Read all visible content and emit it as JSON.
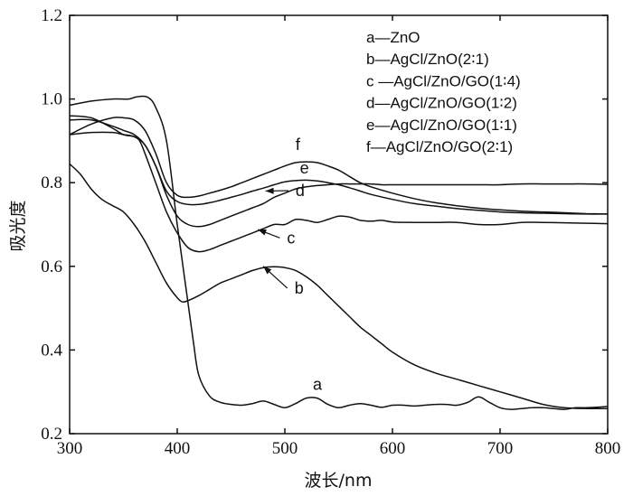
{
  "chart_data": {
    "type": "line",
    "xlabel": "波长/nm",
    "ylabel": "吸光度",
    "xlim": [
      300,
      800
    ],
    "ylim": [
      0.2,
      1.2
    ],
    "xticks": [
      300,
      400,
      500,
      600,
      700,
      800
    ],
    "yticks": [
      0.2,
      0.4,
      0.6,
      0.8,
      1.0,
      1.2
    ],
    "ytick_labels": [
      "0.2",
      "0.4",
      "0.6",
      "0.8",
      "1.0",
      "1.2"
    ],
    "grid": false,
    "legend_position": "top-right",
    "legend": [
      "a—ZnO",
      "b—AgCl/ZnO(2∶1)",
      "c —AgCl/ZnO/GO(1∶4)",
      "d—AgCl/ZnO/GO(1∶2)",
      "e—AgCl/ZnO/GO(1∶1)",
      "f—AgCl/ZnO/GO(2∶1)"
    ],
    "series": [
      {
        "label": "a",
        "x": [
          300,
          320,
          340,
          355,
          362,
          372,
          380,
          390,
          400,
          408,
          415,
          420,
          430,
          440,
          450,
          460,
          470,
          480,
          490,
          500,
          510,
          520,
          530,
          540,
          550,
          560,
          570,
          580,
          590,
          600,
          610,
          620,
          630,
          640,
          650,
          660,
          670,
          680,
          690,
          700,
          710,
          720,
          730,
          740,
          750,
          760,
          770,
          780,
          790,
          800
        ],
        "y": [
          0.985,
          0.995,
          1.0,
          1.0,
          1.005,
          1.005,
          0.98,
          0.9,
          0.7,
          0.55,
          0.42,
          0.34,
          0.29,
          0.275,
          0.27,
          0.268,
          0.272,
          0.278,
          0.27,
          0.262,
          0.272,
          0.285,
          0.285,
          0.27,
          0.262,
          0.268,
          0.272,
          0.268,
          0.263,
          0.268,
          0.268,
          0.266,
          0.268,
          0.27,
          0.27,
          0.268,
          0.275,
          0.288,
          0.275,
          0.262,
          0.258,
          0.26,
          0.262,
          0.262,
          0.26,
          0.258,
          0.262,
          0.262,
          0.263,
          0.265
        ]
      },
      {
        "label": "b",
        "x": [
          300,
          310,
          320,
          330,
          340,
          350,
          360,
          370,
          380,
          390,
          400,
          405,
          410,
          420,
          430,
          440,
          450,
          460,
          470,
          480,
          490,
          500,
          510,
          520,
          530,
          540,
          550,
          560,
          570,
          580,
          590,
          600,
          620,
          640,
          660,
          680,
          700,
          720,
          740,
          760,
          780,
          800
        ],
        "y": [
          0.845,
          0.82,
          0.785,
          0.76,
          0.745,
          0.73,
          0.7,
          0.66,
          0.61,
          0.56,
          0.525,
          0.515,
          0.518,
          0.53,
          0.545,
          0.56,
          0.57,
          0.58,
          0.59,
          0.597,
          0.599,
          0.597,
          0.59,
          0.575,
          0.555,
          0.53,
          0.505,
          0.48,
          0.455,
          0.435,
          0.415,
          0.395,
          0.365,
          0.345,
          0.33,
          0.315,
          0.3,
          0.285,
          0.27,
          0.262,
          0.26,
          0.26
        ]
      },
      {
        "label": "c",
        "x": [
          300,
          320,
          340,
          350,
          360,
          365,
          370,
          380,
          390,
          400,
          410,
          420,
          430,
          440,
          450,
          460,
          470,
          480,
          490,
          500,
          510,
          520,
          530,
          540,
          550,
          560,
          570,
          580,
          590,
          600,
          620,
          640,
          660,
          680,
          700,
          720,
          740,
          760,
          780,
          800
        ],
        "y": [
          0.96,
          0.955,
          0.93,
          0.915,
          0.91,
          0.9,
          0.87,
          0.8,
          0.73,
          0.68,
          0.645,
          0.635,
          0.64,
          0.65,
          0.66,
          0.67,
          0.68,
          0.69,
          0.7,
          0.7,
          0.712,
          0.71,
          0.705,
          0.712,
          0.72,
          0.718,
          0.71,
          0.708,
          0.71,
          0.706,
          0.705,
          0.705,
          0.705,
          0.7,
          0.7,
          0.705,
          0.705,
          0.704,
          0.703,
          0.702
        ]
      },
      {
        "label": "d",
        "x": [
          300,
          320,
          340,
          350,
          360,
          370,
          380,
          390,
          400,
          410,
          420,
          430,
          440,
          450,
          460,
          470,
          480,
          490,
          500,
          510,
          520,
          530,
          540,
          550,
          560,
          570,
          580,
          590,
          600,
          620,
          640,
          660,
          680,
          700,
          720,
          740,
          760,
          780,
          800
        ],
        "y": [
          0.95,
          0.95,
          0.935,
          0.925,
          0.915,
          0.89,
          0.84,
          0.77,
          0.72,
          0.7,
          0.695,
          0.7,
          0.71,
          0.72,
          0.73,
          0.74,
          0.75,
          0.765,
          0.775,
          0.785,
          0.79,
          0.793,
          0.795,
          0.797,
          0.797,
          0.797,
          0.797,
          0.795,
          0.795,
          0.795,
          0.795,
          0.795,
          0.795,
          0.795,
          0.797,
          0.797,
          0.797,
          0.797,
          0.796
        ]
      },
      {
        "label": "e",
        "x": [
          300,
          320,
          340,
          350,
          360,
          370,
          380,
          390,
          400,
          410,
          420,
          430,
          440,
          450,
          460,
          470,
          480,
          490,
          500,
          510,
          520,
          530,
          540,
          550,
          560,
          570,
          580,
          600,
          620,
          640,
          660,
          680,
          700,
          720,
          740,
          760,
          780,
          800
        ],
        "y": [
          0.915,
          0.92,
          0.92,
          0.915,
          0.91,
          0.89,
          0.84,
          0.78,
          0.755,
          0.748,
          0.748,
          0.752,
          0.758,
          0.765,
          0.772,
          0.78,
          0.787,
          0.795,
          0.802,
          0.805,
          0.806,
          0.804,
          0.8,
          0.795,
          0.788,
          0.78,
          0.772,
          0.76,
          0.75,
          0.744,
          0.738,
          0.734,
          0.73,
          0.728,
          0.727,
          0.726,
          0.725,
          0.725
        ]
      },
      {
        "label": "f",
        "x": [
          300,
          320,
          340,
          350,
          360,
          370,
          380,
          390,
          400,
          410,
          420,
          430,
          440,
          450,
          460,
          470,
          480,
          490,
          500,
          510,
          520,
          530,
          540,
          550,
          560,
          570,
          580,
          600,
          620,
          640,
          660,
          680,
          700,
          720,
          740,
          760,
          780,
          800
        ],
        "y": [
          0.915,
          0.94,
          0.955,
          0.955,
          0.95,
          0.925,
          0.87,
          0.8,
          0.77,
          0.765,
          0.768,
          0.775,
          0.782,
          0.79,
          0.8,
          0.81,
          0.82,
          0.83,
          0.84,
          0.848,
          0.85,
          0.848,
          0.84,
          0.83,
          0.815,
          0.8,
          0.79,
          0.775,
          0.762,
          0.752,
          0.745,
          0.739,
          0.735,
          0.732,
          0.73,
          0.728,
          0.726,
          0.725
        ]
      }
    ],
    "annotations": [
      {
        "text": "a",
        "x": 526,
        "y": 0.305
      },
      {
        "text": "b",
        "x": 509,
        "y": 0.535,
        "arrow_to": [
          480,
          0.6
        ]
      },
      {
        "text": "c",
        "x": 502,
        "y": 0.655,
        "arrow_to": [
          475,
          0.688
        ]
      },
      {
        "text": "d",
        "x": 510,
        "y": 0.768,
        "arrow_to": [
          482,
          0.78
        ]
      },
      {
        "text": "e",
        "x": 514,
        "y": 0.822
      },
      {
        "text": "f",
        "x": 510,
        "y": 0.878
      }
    ]
  }
}
